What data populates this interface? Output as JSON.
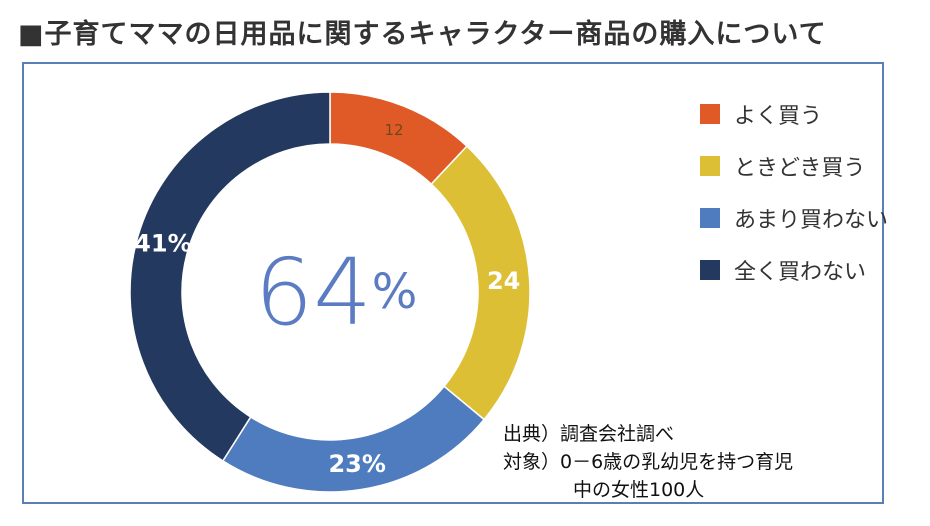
{
  "title": "■子育てママの日用品に関するキャラクター商品の購入について",
  "chart_data": {
    "type": "pie",
    "variant": "donut",
    "center_label": "64%",
    "slices": [
      {
        "label": "よく買う",
        "value": 12,
        "display": "12",
        "color": "#e05a28"
      },
      {
        "label": "ときどき買う",
        "value": 24,
        "display": "24",
        "color": "#dcbf35"
      },
      {
        "label": "あまり買わない",
        "value": 23,
        "display": "23%",
        "color": "#4f7cbf"
      },
      {
        "label": "全く買わない",
        "value": 41,
        "display": "41%",
        "color": "#24395f"
      }
    ],
    "legend_position": "right"
  },
  "source": {
    "line1": "出典）調査会社調べ",
    "line2": "対象）0－6歳の乳幼児を持つ育児",
    "line3": "中の女性100人"
  }
}
